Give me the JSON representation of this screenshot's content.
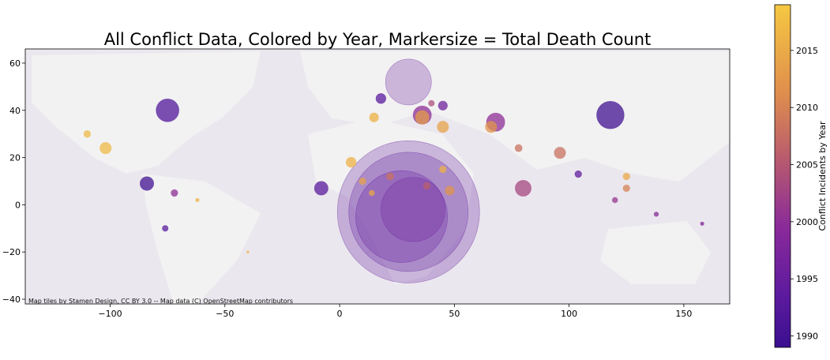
{
  "title": "All Conflict Data, Colored by Year, Markersize = Total Death Count",
  "attribution": "Map tiles by Stamen Design, CC BY 3.0 -- Map data (C) OpenStreetMap contributors",
  "colorbar_label": "Conflict Incidents by Year",
  "colors": {
    "land": "#eeeeee",
    "ocean": "#e9e6ec",
    "early": "#5c1a9e",
    "mid": "#b85b6e",
    "late": "#f0c040"
  },
  "chart_data": {
    "type": "scatter",
    "xlim": [
      -137,
      170
    ],
    "ylim": [
      -42,
      66
    ],
    "xticks": [
      -100,
      -50,
      0,
      50,
      100,
      150
    ],
    "xtick_labels": [
      "−100",
      "−50",
      "0",
      "50",
      "100",
      "150"
    ],
    "yticks": [
      -40,
      -20,
      0,
      20,
      40,
      60
    ],
    "ytick_labels": [
      "−40",
      "−20",
      "0",
      "20",
      "40",
      "60"
    ],
    "color_range": [
      1989,
      2019
    ],
    "colorbar_ticks": [
      1990,
      1995,
      2000,
      2005,
      2010,
      2015
    ],
    "colorbar_tick_labels": [
      "1990",
      "1995",
      "2000",
      "2005",
      "2010",
      "2015"
    ],
    "points": [
      {
        "lon": 30,
        "lat": -3,
        "year": 1994,
        "size": 31
      },
      {
        "lon": 30,
        "lat": -3,
        "year": 1994,
        "size": 26
      },
      {
        "lon": 27,
        "lat": -5,
        "year": 1994,
        "size": 20
      },
      {
        "lon": 32,
        "lat": -2,
        "year": 1996,
        "size": 14
      },
      {
        "lon": 30,
        "lat": 52,
        "year": 1995,
        "size": 10
      },
      {
        "lon": 118,
        "lat": 38,
        "year": 1990,
        "size": 6
      },
      {
        "lon": -75,
        "lat": 40,
        "year": 1992,
        "size": 5
      },
      {
        "lon": -84,
        "lat": 9,
        "year": 1990,
        "size": 3
      },
      {
        "lon": -8,
        "lat": 7,
        "year": 1993,
        "size": 3
      },
      {
        "lon": 80,
        "lat": 7,
        "year": 2003,
        "size": 3.5
      },
      {
        "lon": 68,
        "lat": 35,
        "year": 2000,
        "size": 4
      },
      {
        "lon": 36,
        "lat": 38,
        "year": 2000,
        "size": 4
      },
      {
        "lon": 36,
        "lat": 37,
        "year": 2013,
        "size": 3
      },
      {
        "lon": 45,
        "lat": 33,
        "year": 2014,
        "size": 2.5
      },
      {
        "lon": 66,
        "lat": 33,
        "year": 2012,
        "size": 2.5
      },
      {
        "lon": 96,
        "lat": 22,
        "year": 2008,
        "size": 2.5
      },
      {
        "lon": 125,
        "lat": 7,
        "year": 2010,
        "size": 1.5
      },
      {
        "lon": 48,
        "lat": 6,
        "year": 2012,
        "size": 2
      },
      {
        "lon": 15,
        "lat": 37,
        "year": 2016,
        "size": 2
      },
      {
        "lon": 5,
        "lat": 18,
        "year": 2016,
        "size": 2.2
      },
      {
        "lon": -102,
        "lat": 24,
        "year": 2017,
        "size": 2.5
      },
      {
        "lon": -110,
        "lat": 30,
        "year": 2017,
        "size": 1.5
      },
      {
        "lon": 18,
        "lat": 45,
        "year": 1993,
        "size": 2.2
      },
      {
        "lon": 45,
        "lat": 42,
        "year": 1996,
        "size": 2
      },
      {
        "lon": 125,
        "lat": 12,
        "year": 2015,
        "size": 1.5
      },
      {
        "lon": -62,
        "lat": 2,
        "year": 2016,
        "size": 0.8
      },
      {
        "lon": -40,
        "lat": -20,
        "year": 2016,
        "size": 0.5
      },
      {
        "lon": -72,
        "lat": 5,
        "year": 2000,
        "size": 1.5
      },
      {
        "lon": -76,
        "lat": -10,
        "year": 1993,
        "size": 1.3
      },
      {
        "lon": 78,
        "lat": 24,
        "year": 2008,
        "size": 1.6
      },
      {
        "lon": 104,
        "lat": 13,
        "year": 1994,
        "size": 1.5
      },
      {
        "lon": 138,
        "lat": -4,
        "year": 1999,
        "size": 1
      },
      {
        "lon": 158,
        "lat": -8,
        "year": 1998,
        "size": 0.8
      },
      {
        "lon": 10,
        "lat": 10,
        "year": 2014,
        "size": 1.5
      },
      {
        "lon": 45,
        "lat": 15,
        "year": 2016,
        "size": 1.5
      },
      {
        "lon": 38,
        "lat": 8,
        "year": 2006,
        "size": 1.5
      },
      {
        "lon": 22,
        "lat": 12,
        "year": 2008,
        "size": 1.6
      },
      {
        "lon": 14,
        "lat": 5,
        "year": 2015,
        "size": 1.2
      },
      {
        "lon": 40,
        "lat": 43,
        "year": 2004,
        "size": 1.3
      },
      {
        "lon": 120,
        "lat": 2,
        "year": 2001,
        "size": 1.2
      }
    ]
  }
}
